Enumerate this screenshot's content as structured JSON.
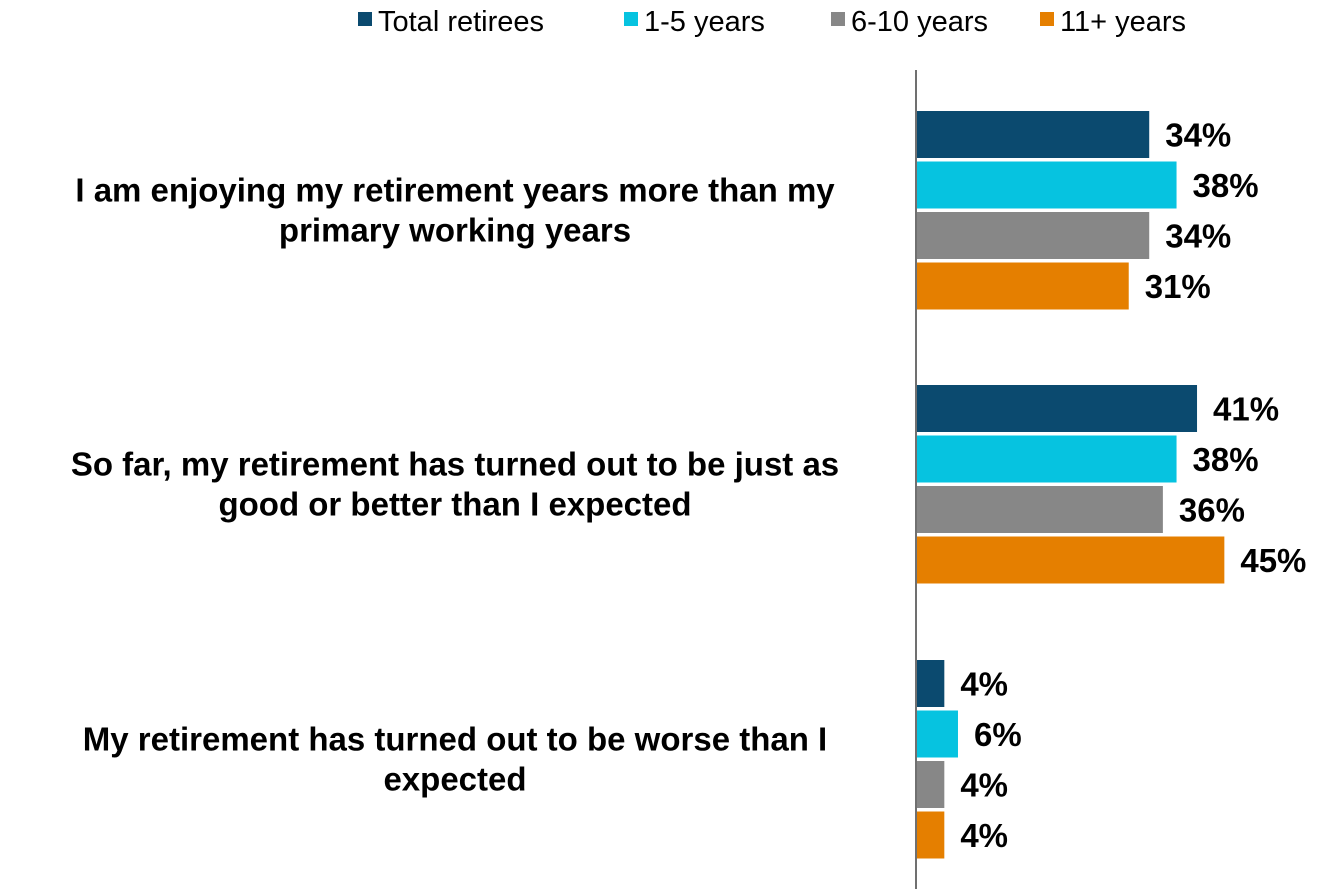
{
  "chart_data": {
    "type": "bar",
    "orientation": "horizontal",
    "categories": [
      [
        "I am enjoying my retirement years more than my",
        "primary working years"
      ],
      [
        "So far, my retirement has turned out to be just as",
        "good or better than I expected"
      ],
      [
        "My retirement has turned out to be worse than I",
        "expected"
      ]
    ],
    "series": [
      {
        "name": "Total retirees",
        "color": "#0B4A6F",
        "values": [
          34,
          41,
          4
        ],
        "labels": [
          "34%",
          "41%",
          "4%"
        ]
      },
      {
        "name": "1-5 years",
        "color": "#06C3E0",
        "values": [
          38,
          38,
          6
        ],
        "labels": [
          "38%",
          "38%",
          "6%"
        ]
      },
      {
        "name": "6-10 years",
        "color": "#878787",
        "values": [
          34,
          36,
          4
        ],
        "labels": [
          "34%",
          "36%",
          "4%"
        ]
      },
      {
        "name": "11+ years",
        "color": "#E57F00",
        "values": [
          31,
          45,
          4
        ],
        "labels": [
          "31%",
          "45%",
          "4%"
        ]
      }
    ],
    "xlim": [
      0,
      50
    ],
    "legend_position": "top",
    "grid": false
  }
}
